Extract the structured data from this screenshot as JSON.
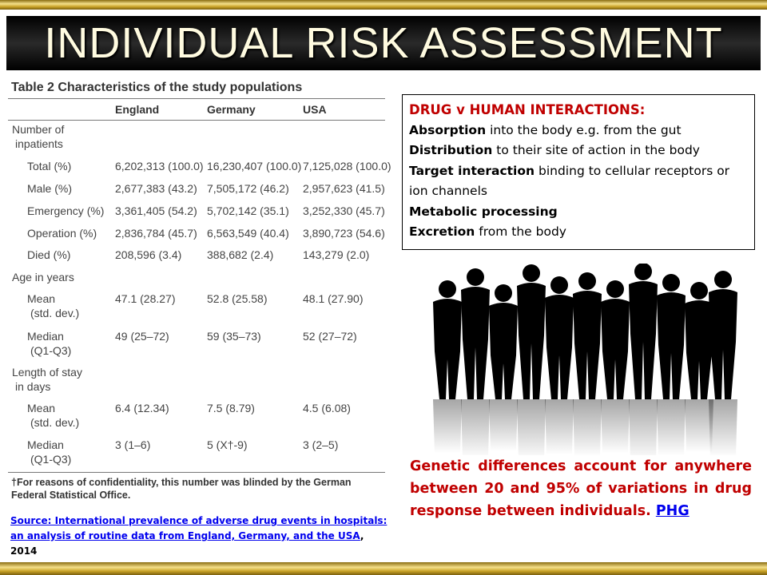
{
  "title": "INDIVIDUAL RISK ASSESSMENT",
  "table": {
    "caption": "Table 2 Characteristics of the study populations",
    "columns": [
      "England",
      "Germany",
      "USA"
    ],
    "rows": [
      {
        "label": [
          "Number of",
          "inpatients"
        ]
      },
      {
        "label": [
          "Total (%)"
        ],
        "cells": [
          "6,202,313 (100.0)",
          "16,230,407 (100.0)",
          "7,125,028 (100.0)"
        ]
      },
      {
        "label": [
          "Male (%)"
        ],
        "cells": [
          "2,677,383 (43.2)",
          "7,505,172 (46.2)",
          "2,957,623 (41.5)"
        ]
      },
      {
        "label": [
          "Emergency (%)"
        ],
        "cells": [
          "3,361,405 (54.2)",
          "5,702,142 (35.1)",
          "3,252,330 (45.7)"
        ]
      },
      {
        "label": [
          "Operation (%)"
        ],
        "cells": [
          "2,836,784 (45.7)",
          "6,563,549 (40.4)",
          "3,890,723 (54.6)"
        ]
      },
      {
        "label": [
          "Died (%)"
        ],
        "cells": [
          "208,596 (3.4)",
          "388,682 (2.4)",
          "143,279 (2.0)"
        ]
      },
      {
        "label": [
          "Age in years"
        ]
      },
      {
        "label": [
          "Mean",
          "(std. dev.)"
        ],
        "cells": [
          "47.1 (28.27)",
          "52.8 (25.58)",
          "48.1 (27.90)"
        ]
      },
      {
        "label": [
          "Median",
          "(Q1-Q3)"
        ],
        "cells": [
          "49 (25–72)",
          "59 (35–73)",
          "52 (27–72)"
        ]
      },
      {
        "label": [
          "Length of stay",
          "in days"
        ]
      },
      {
        "label": [
          "Mean",
          "(std. dev.)"
        ],
        "cells": [
          "6.4 (12.34)",
          "7.5 (8.79)",
          "4.5 (6.08)"
        ]
      },
      {
        "label": [
          "Median",
          "(Q1-Q3)"
        ],
        "cells": [
          "3 (1–6)",
          "5 (X†-9)",
          "3 (2–5)"
        ]
      }
    ],
    "footnote": "†For reasons of confidentiality, this number was blinded by the German Federal Statistical Office."
  },
  "source": {
    "link": "Source: International prevalence of adverse drug events in hospitals: an analysis of routine data from England, Germany, and the USA",
    "year": ", 2014"
  },
  "box": {
    "heading": "DRUG v HUMAN INTERACTIONS:",
    "items": [
      {
        "term": "Absorption",
        "text": "into the body e.g. from the gut"
      },
      {
        "term": "Distribution",
        "text": "to their site of action in the body"
      },
      {
        "term": "Target interaction",
        "text": "binding to cellular receptors or ion channels"
      },
      {
        "term": "Metabolic processing"
      },
      {
        "term": "Excretion",
        "text": "from the body"
      }
    ]
  },
  "genetics": {
    "text": "Genetic differences account for anywhere between 20 and 95% of variations in drug response between individuals.",
    "link": "PHG"
  }
}
